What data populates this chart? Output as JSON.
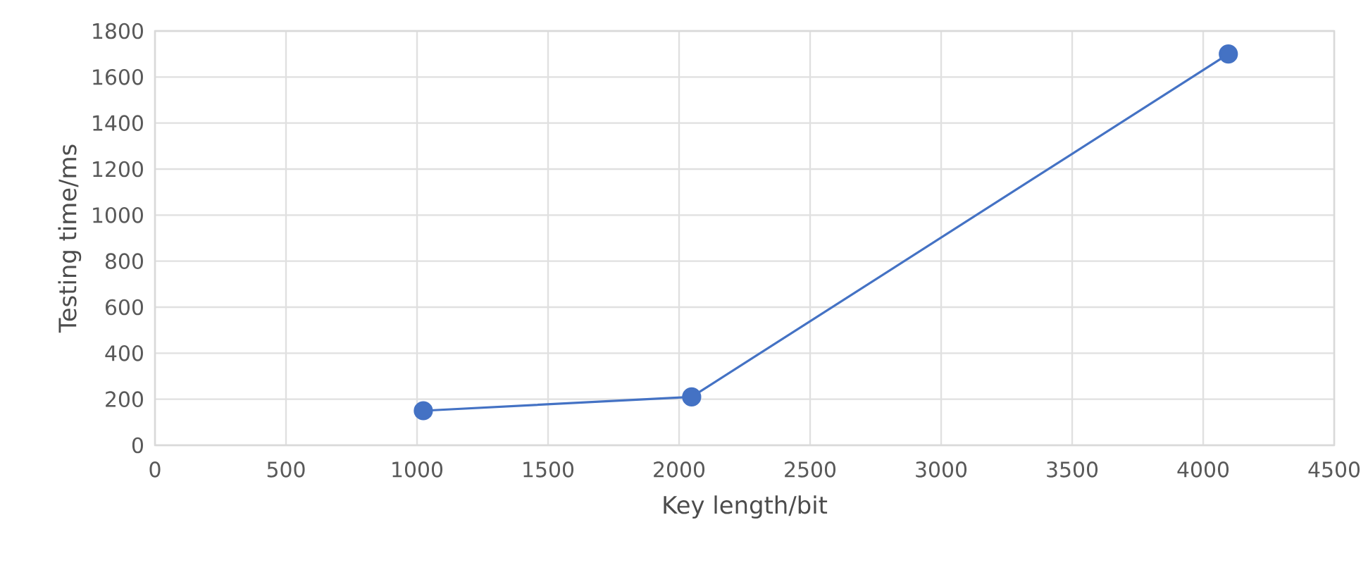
{
  "chart_data": {
    "type": "line",
    "xlabel": "Key length/bit",
    "ylabel": "Testing time/ms",
    "x": [
      1024,
      2048,
      4096
    ],
    "series": [
      {
        "color": "#4472c4",
        "values": [
          150,
          210,
          1700
        ]
      }
    ],
    "xlim": [
      0,
      4500
    ],
    "ylim": [
      0,
      1800
    ],
    "xticks": [
      0,
      500,
      1000,
      1500,
      2000,
      2500,
      3000,
      3500,
      4000,
      4500
    ],
    "yticks": [
      0,
      200,
      400,
      600,
      800,
      1000,
      1200,
      1400,
      1600,
      1800
    ],
    "grid": true,
    "marker": "circle",
    "line_style": "solid"
  }
}
